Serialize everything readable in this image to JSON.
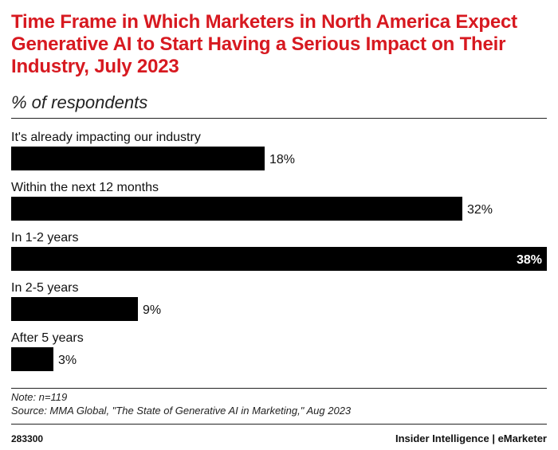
{
  "header": {
    "title": "Time Frame in Which Marketers in North America Expect Generative AI to Start Having a Serious Impact on Their Industry, July 2023",
    "subtitle": "% of respondents"
  },
  "chart_data": {
    "type": "bar",
    "orientation": "horizontal",
    "title": "Time Frame in Which Marketers in North America Expect Generative AI to Start Having a Serious Impact on Their Industry, July 2023",
    "subtitle": "% of respondents",
    "categories": [
      "It's already impacting our industry",
      "Within the next 12 months",
      "In 1-2 years",
      "In 2-5 years",
      "After 5 years"
    ],
    "values": [
      18,
      32,
      38,
      9,
      3
    ],
    "value_labels": [
      "18%",
      "32%",
      "38%",
      "9%",
      "3%"
    ],
    "xlim": [
      0,
      38
    ],
    "grid": false,
    "bar_color": "#000000"
  },
  "notes": {
    "note": "Note: n=119",
    "source": "Source: MMA Global, \"The State of Generative AI in Marketing,\" Aug 2023"
  },
  "footer": {
    "chart_id": "283300",
    "brand": "Insider Intelligence | eMarketer"
  },
  "colors": {
    "title": "#d71920",
    "bar": "#000000",
    "text": "#111111"
  }
}
